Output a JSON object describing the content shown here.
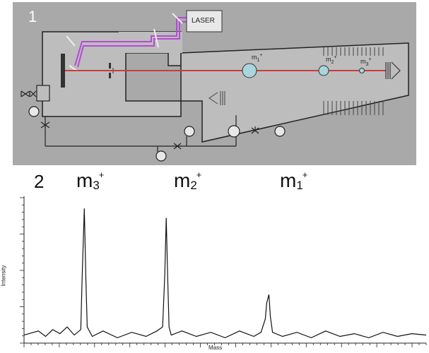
{
  "panel1": {
    "number": "1",
    "laser_label": "LASER",
    "ions": [
      {
        "base": "m",
        "sub": "1",
        "sup": "+"
      },
      {
        "base": "m",
        "sub": "2",
        "sup": "+"
      },
      {
        "base": "m",
        "sub": "3",
        "sup": "+"
      }
    ],
    "colors": {
      "background": "#a9a9a9",
      "beam": "#cc3b3b",
      "laser_path": "#b54ad6",
      "ion": "#a9d6dc"
    }
  },
  "panel2": {
    "number": "2",
    "peak_labels": [
      {
        "base": "m",
        "sub": "3",
        "sup": "+"
      },
      {
        "base": "m",
        "sub": "2",
        "sup": "+"
      },
      {
        "base": "m",
        "sub": "1",
        "sup": "+"
      }
    ],
    "chart_data": {
      "type": "line",
      "title": "",
      "xlabel": "Mass",
      "ylabel": "Intensity",
      "x": [
        0,
        20,
        30,
        40,
        50,
        60,
        70,
        79,
        81,
        84,
        86,
        88,
        95,
        110,
        130,
        150,
        170,
        185,
        193,
        196,
        198,
        200,
        202,
        205,
        220,
        240,
        260,
        280,
        300,
        320,
        330,
        336,
        338,
        341,
        343,
        346,
        360,
        380,
        400,
        420,
        440,
        460,
        480,
        500,
        520,
        540,
        560
      ],
      "values": [
        0.06,
        0.09,
        0.05,
        0.1,
        0.07,
        0.12,
        0.06,
        0.1,
        0.5,
        1.0,
        0.5,
        0.12,
        0.05,
        0.09,
        0.04,
        0.08,
        0.05,
        0.09,
        0.12,
        0.5,
        0.93,
        0.5,
        0.12,
        0.06,
        0.09,
        0.05,
        0.08,
        0.04,
        0.09,
        0.05,
        0.08,
        0.18,
        0.3,
        0.36,
        0.2,
        0.08,
        0.05,
        0.08,
        0.04,
        0.09,
        0.05,
        0.07,
        0.04,
        0.08,
        0.05,
        0.07,
        0.06
      ],
      "ylim": [
        0,
        1.08
      ],
      "grid": false,
      "line_color": "#111111"
    }
  }
}
